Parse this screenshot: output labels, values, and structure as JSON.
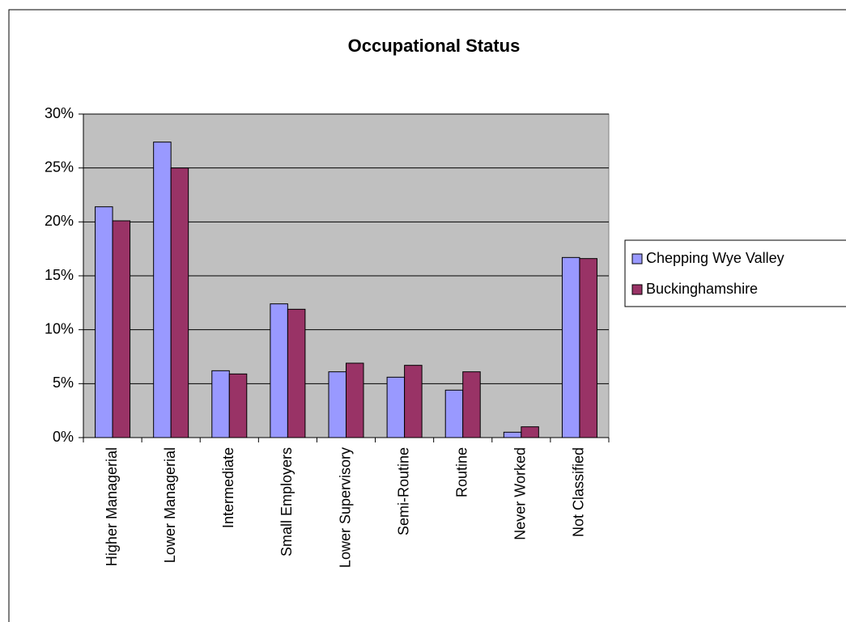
{
  "chart_data": {
    "type": "bar",
    "title": "Occupational Status",
    "categories": [
      "Higher Managerial",
      "Lower Managerial",
      "Intermediate",
      "Small Employers",
      "Lower Supervisory",
      "Semi-Routine",
      "Routine",
      "Never Worked",
      "Not Classified"
    ],
    "series": [
      {
        "name": "Chepping Wye Valley",
        "color": "#9999ff",
        "values": [
          21.4,
          27.4,
          6.2,
          12.4,
          6.1,
          5.6,
          4.4,
          0.5,
          16.7
        ]
      },
      {
        "name": "Buckinghamshire",
        "color": "#993366",
        "values": [
          20.1,
          25.0,
          5.9,
          11.9,
          6.9,
          6.7,
          6.1,
          1.0,
          16.6
        ]
      }
    ],
    "ylim": [
      0,
      30
    ],
    "yticks": [
      {
        "value": 0,
        "label": "0%"
      },
      {
        "value": 5,
        "label": "5%"
      },
      {
        "value": 10,
        "label": "10%"
      },
      {
        "value": 15,
        "label": "15%"
      },
      {
        "value": 20,
        "label": "20%"
      },
      {
        "value": 25,
        "label": "25%"
      },
      {
        "value": 30,
        "label": "30%"
      }
    ],
    "grid": true,
    "legend": "right"
  }
}
